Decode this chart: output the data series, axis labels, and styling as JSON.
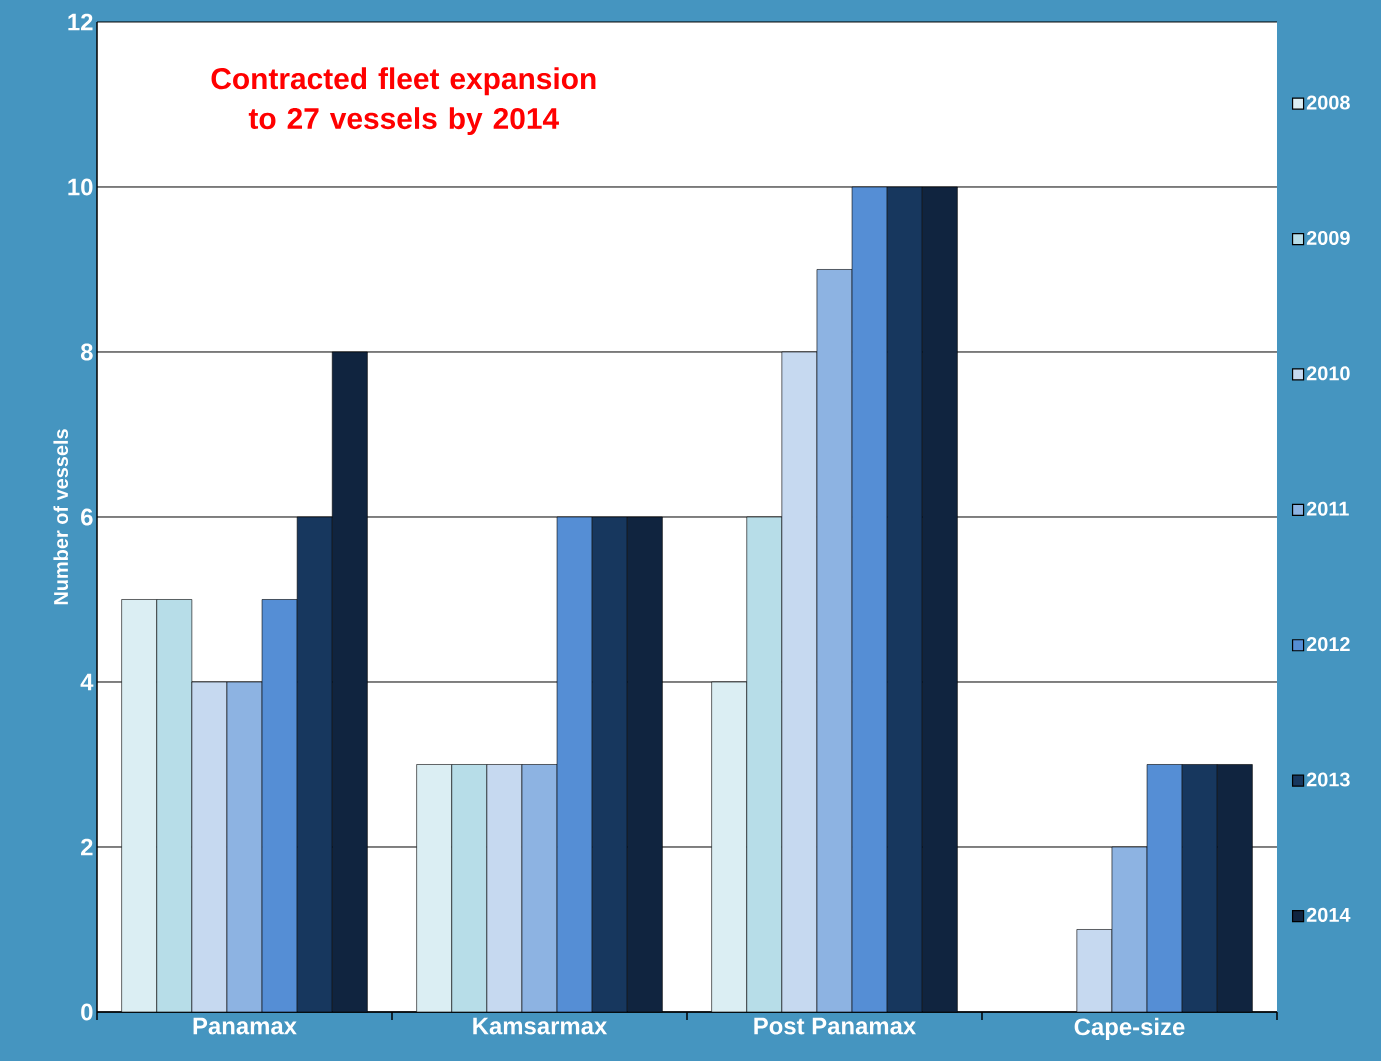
{
  "chart_data": {
    "type": "bar",
    "title": "Contracted fleet expansion to 27 vessels by 2014",
    "ylabel": "Number of vessels",
    "categories": [
      "Panamax",
      "Kamsarmax",
      "Post Panamax",
      "Cape-size"
    ],
    "series": [
      {
        "name": "2008",
        "color": "#dbeef3",
        "values": [
          5,
          3,
          4,
          null
        ]
      },
      {
        "name": "2009",
        "color": "#b7dde8",
        "values": [
          5,
          3,
          6,
          null
        ]
      },
      {
        "name": "2010",
        "color": "#c6d9f0",
        "values": [
          4,
          3,
          8,
          1
        ]
      },
      {
        "name": "2011",
        "color": "#8db3e2",
        "values": [
          4,
          3,
          9,
          2
        ]
      },
      {
        "name": "2012",
        "color": "#558ed5",
        "values": [
          5,
          6,
          10,
          3
        ]
      },
      {
        "name": "2013",
        "color": "#17375e",
        "values": [
          6,
          6,
          10,
          3
        ]
      },
      {
        "name": "2014",
        "color": "#10243f",
        "values": [
          8,
          6,
          10,
          3
        ]
      }
    ],
    "ylim": [
      0,
      12
    ],
    "yticks": [
      0,
      2,
      4,
      6,
      8,
      10,
      12
    ],
    "grid": "y",
    "legend": "right"
  }
}
